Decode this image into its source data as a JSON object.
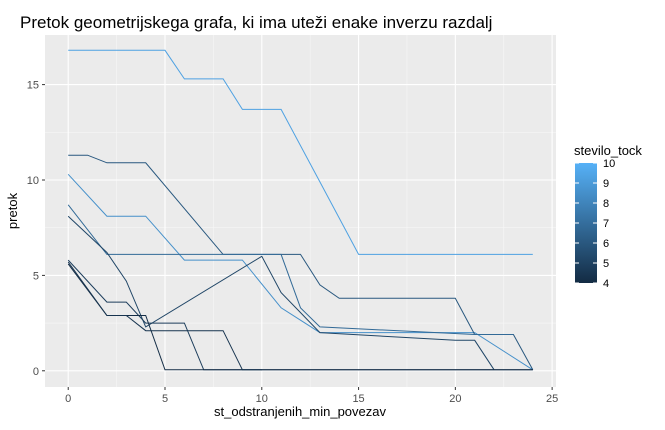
{
  "chart_data": {
    "type": "line",
    "title": "Pretok geometrijskega grafa, ki ima uteži enake inverzu razdalj",
    "xlabel": "st_odstranjenih_min_povezav",
    "ylabel": "pretok",
    "xlim": [
      -1.2,
      25.2
    ],
    "ylim": [
      -0.85,
      17.6
    ],
    "x_ticks": [
      0,
      5,
      10,
      15,
      20,
      25
    ],
    "x_tick_labels": [
      "0",
      "5",
      "10",
      "15",
      "20",
      "25"
    ],
    "y_ticks": [
      0,
      5,
      10,
      15
    ],
    "y_tick_labels": [
      "0",
      "5",
      "10",
      "15"
    ],
    "grid": true,
    "legend": {
      "title": "stevilo_tock",
      "position": "right",
      "range": [
        4,
        10
      ],
      "ticks": [
        4,
        5,
        6,
        7,
        8,
        9,
        10
      ],
      "tick_labels": [
        "4",
        "5",
        "6",
        "7",
        "8",
        "9",
        "10"
      ],
      "low_color": "#132B43",
      "high_color": "#56B1F7"
    },
    "series": [
      {
        "color_value": 9.3,
        "x": [
          0,
          5,
          6,
          8,
          9,
          11,
          13,
          15,
          24
        ],
        "y": [
          16.8,
          16.8,
          15.3,
          15.3,
          13.7,
          13.7,
          9.9,
          6.1,
          6.1
        ]
      },
      {
        "color_value": 8.5,
        "x": [
          0,
          2,
          4,
          6,
          9,
          11,
          13,
          21,
          24
        ],
        "y": [
          10.3,
          8.1,
          8.1,
          5.8,
          5.8,
          3.3,
          2.0,
          2.0,
          0.05
        ]
      },
      {
        "color_value": 6.0,
        "x": [
          0,
          1,
          2,
          4,
          8,
          10,
          12,
          13,
          14,
          20,
          21,
          23,
          24
        ],
        "y": [
          11.3,
          11.3,
          10.9,
          10.9,
          6.1,
          6.1,
          6.1,
          4.5,
          3.8,
          3.8,
          1.9,
          1.9,
          0.05
        ]
      },
      {
        "color_value": 6.8,
        "x": [
          0,
          2,
          7,
          11,
          12,
          13,
          21,
          22,
          23
        ],
        "y": [
          8.7,
          6.1,
          6.1,
          6.1,
          3.3,
          2.3,
          1.9,
          1.9,
          1.9
        ]
      },
      {
        "color_value": 5.2,
        "x": [
          0,
          2,
          3,
          4,
          10,
          11,
          13,
          20,
          21,
          22
        ],
        "y": [
          8.1,
          6.2,
          4.7,
          2.3,
          6.0,
          4.1,
          2.0,
          1.6,
          1.6,
          0.05
        ]
      },
      {
        "color_value": 4.8,
        "x": [
          0,
          2,
          3,
          4,
          6,
          7,
          24
        ],
        "y": [
          5.8,
          3.6,
          3.6,
          2.5,
          2.5,
          0.05,
          0.05
        ]
      },
      {
        "color_value": 4.1,
        "x": [
          0,
          2,
          4,
          5,
          9,
          10,
          24
        ],
        "y": [
          5.6,
          2.9,
          2.9,
          0.05,
          0.05,
          0.05,
          0.05
        ]
      },
      {
        "color_value": 4.4,
        "x": [
          0,
          2,
          3,
          4,
          7,
          8,
          9,
          10
        ],
        "y": [
          5.7,
          2.9,
          2.9,
          2.1,
          2.1,
          2.1,
          0.05,
          0.05
        ]
      }
    ]
  }
}
